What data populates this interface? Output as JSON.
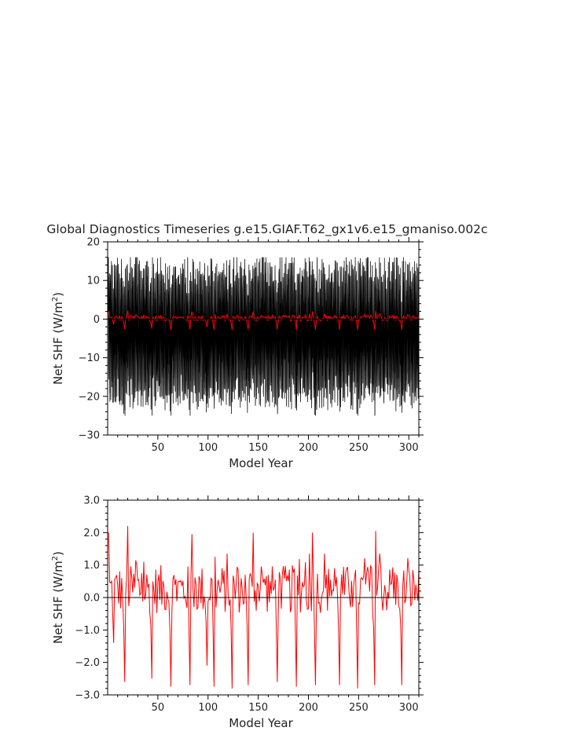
{
  "figure_title": "Global Diagnostics Timeseries g.e15.GIAF.T62_gx1v6.e15_gmaniso.002c",
  "chart_data": [
    {
      "type": "line",
      "description_source": "top panel",
      "xlabel": "Model Year",
      "ylabel_main": "Net SHF (W/m",
      "ylabel_sup": "2",
      "ylabel_end": ")",
      "xlim": [
        0,
        310
      ],
      "ylim": [
        -30,
        20
      ],
      "xticks": [
        50,
        100,
        150,
        200,
        250,
        300
      ],
      "yticks": [
        -30,
        -20,
        -10,
        0,
        10,
        20
      ],
      "ytick_labels": [
        "−30",
        "−20",
        "−10",
        "0",
        "10",
        "20"
      ],
      "zero_line": true,
      "series": [
        {
          "color": "#000000",
          "frequency": "monthly",
          "envelope_max": [
            12,
            16
          ],
          "envelope_min": [
            -20,
            -25
          ],
          "values_sample": [
            12.5,
            4.1,
            -8.2,
            -19.6,
            -14.3,
            2.0,
            10.8,
            13.9,
            6.4,
            -5.1,
            -17.8,
            -22.4
          ]
        },
        {
          "color": "#ff0000",
          "frequency": "annual",
          "values_ref": "annual_net_shf"
        }
      ]
    },
    {
      "type": "line",
      "description_source": "bottom panel",
      "xlabel": "Model Year",
      "ylabel_main": "Net SHF (W/m",
      "ylabel_sup": "2",
      "ylabel_end": ")",
      "xlim": [
        0,
        310
      ],
      "ylim": [
        -3.0,
        3.0
      ],
      "xticks": [
        50,
        100,
        150,
        200,
        250,
        300
      ],
      "yticks": [
        -3.0,
        -2.0,
        -1.0,
        0.0,
        1.0,
        2.0,
        3.0
      ],
      "ytick_labels": [
        "−3.0",
        "−2.0",
        "−1.0",
        "0.0",
        "1.0",
        "2.0",
        "3.0"
      ],
      "zero_line": true,
      "series": [
        {
          "color": "#ff0000",
          "frequency": "annual",
          "values_ref": "annual_net_shf"
        }
      ]
    }
  ],
  "annual_net_shf": {
    "x_start": 1,
    "x_end": 310,
    "peaks": [
      [
        1,
        2.0
      ],
      [
        20,
        2.2
      ],
      [
        84,
        1.95
      ],
      [
        145,
        2.0
      ],
      [
        204,
        2.0
      ],
      [
        267,
        2.05
      ]
    ],
    "troughs": [
      [
        6,
        -1.4
      ],
      [
        17,
        -2.6
      ],
      [
        44,
        -2.5
      ],
      [
        63,
        -2.75
      ],
      [
        82,
        -2.7
      ],
      [
        99,
        -2.1
      ],
      [
        106,
        -2.75
      ],
      [
        124,
        -2.8
      ],
      [
        140,
        -2.7
      ],
      [
        169,
        -2.6
      ],
      [
        188,
        -2.75
      ],
      [
        207,
        -2.7
      ],
      [
        231,
        -2.7
      ],
      [
        249,
        -2.8
      ],
      [
        266,
        -2.7
      ],
      [
        293,
        -2.7
      ]
    ]
  }
}
